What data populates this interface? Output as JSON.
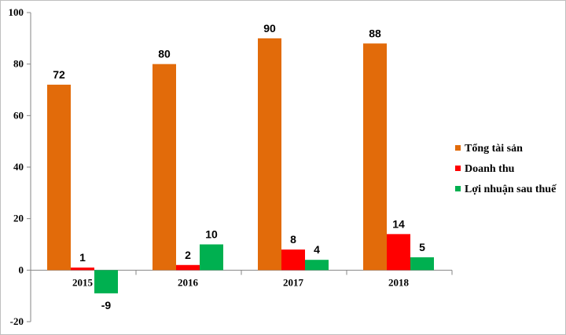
{
  "chart_data": {
    "type": "bar",
    "categories": [
      "2015",
      "2016",
      "2017",
      "2018"
    ],
    "series": [
      {
        "name": "Tổng tài sản",
        "values": [
          72,
          80,
          90,
          88
        ],
        "color": "#e26b0a"
      },
      {
        "name": "Doanh thu",
        "values": [
          1,
          2,
          8,
          14
        ],
        "color": "#ff0000"
      },
      {
        "name": "Lợi nhuận  sau thuế",
        "values": [
          -9,
          10,
          4,
          5
        ],
        "color": "#00b050"
      }
    ],
    "ylim": [
      -20,
      100
    ],
    "yticks": [
      -20,
      0,
      20,
      40,
      60,
      80,
      100
    ],
    "grid": false,
    "legend": "right",
    "title": "",
    "xlabel": "",
    "ylabel": ""
  }
}
